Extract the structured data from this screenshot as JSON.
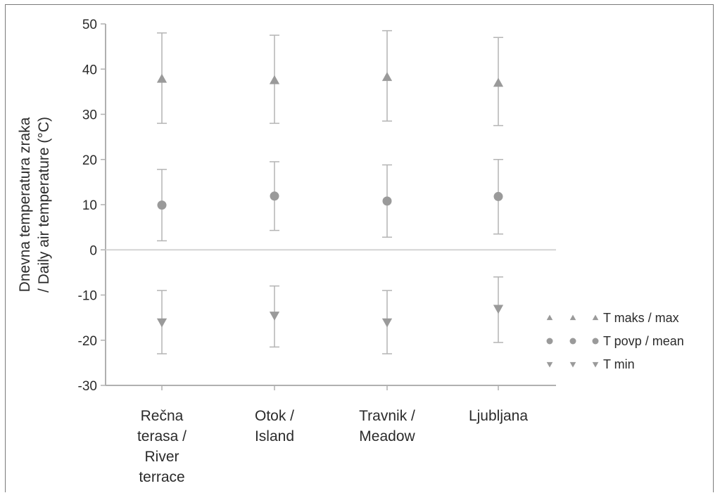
{
  "chart_data": {
    "type": "scatter",
    "title": "",
    "ylabel_lines": [
      "Dnevna temperatura zraka",
      "/ Daily air temperature (°C)"
    ],
    "xlabel": "",
    "ylim": [
      -30,
      50
    ],
    "yticks": [
      -30,
      -20,
      -10,
      0,
      10,
      20,
      30,
      40,
      50
    ],
    "categories": [
      [
        "Rečna",
        "terasa /",
        "River",
        "terrace"
      ],
      [
        "Otok /",
        "Island"
      ],
      [
        "Travnik /",
        "Meadow"
      ],
      [
        "Ljubljana"
      ]
    ],
    "series": [
      {
        "name": "T maks / max",
        "marker": "triangle-up",
        "values": [
          37.8,
          37.5,
          38.2,
          36.9
        ],
        "err_low": [
          28.0,
          28.0,
          28.5,
          27.5
        ],
        "err_high": [
          48.0,
          47.5,
          48.5,
          47.0
        ]
      },
      {
        "name": "T povp / mean",
        "marker": "circle",
        "values": [
          9.9,
          11.9,
          10.8,
          11.8
        ],
        "err_low": [
          2.0,
          4.3,
          2.8,
          3.5
        ],
        "err_high": [
          17.8,
          19.5,
          18.8,
          20.0
        ]
      },
      {
        "name": "T min",
        "marker": "triangle-down",
        "values": [
          -16.0,
          -14.5,
          -16.0,
          -13.0
        ],
        "err_low": [
          -23.0,
          -21.5,
          -23.0,
          -20.5
        ],
        "err_high": [
          -9.0,
          -8.0,
          -9.0,
          -6.0
        ]
      }
    ],
    "grid": false,
    "zero_line": true,
    "legend_position": "right",
    "colors": {
      "marker": "#9a9a9a",
      "error_bar": "#b4b4b4",
      "axis": "#b0b0b0",
      "zero_line": "#d4d4d4"
    }
  }
}
